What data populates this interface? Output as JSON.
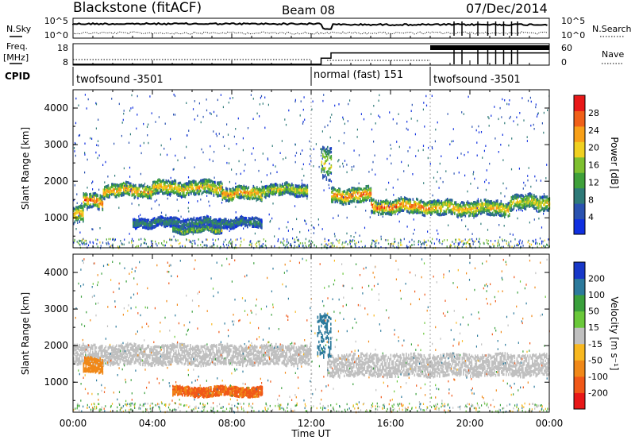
{
  "header": {
    "station": "Blackstone (fitACF)",
    "beam": "Beam 08",
    "date": "07/Dec/2014"
  },
  "side_labels": {
    "nsky": "N.Sky",
    "freq_top": "Freq.",
    "freq_bottom": "[MHz]",
    "cpid": "CPID",
    "nsearch": "N.Search",
    "nave": "Nave"
  },
  "noise_panel": {
    "ytick_top": "10^5",
    "ytick_bottom": "10^0",
    "right_ytick_top": "10^5",
    "right_ytick_bottom": "10^0"
  },
  "freq_panel": {
    "ytick_top": "18",
    "ytick_bottom": "8",
    "right_ytick_top": "60",
    "right_ytick_bottom": "0",
    "freq_steps": [
      {
        "start": 0,
        "end": 12.5,
        "mhz": 8.5
      },
      {
        "start": 12.5,
        "end": 13.0,
        "mhz": 12
      },
      {
        "start": 13.0,
        "end": 24,
        "mhz": 15
      }
    ]
  },
  "cpid_segments": [
    {
      "label": "twofsound -3501",
      "start_hour": 0
    },
    {
      "label": "normal (fast) 151",
      "start_hour": 12
    },
    {
      "label": "twofsound -3501",
      "start_hour": 18
    }
  ],
  "time_axis": {
    "label": "Time UT",
    "ticks": [
      "00:00",
      "04:00",
      "08:00",
      "12:00",
      "16:00",
      "20:00",
      "00:00"
    ]
  },
  "power_panel": {
    "ylabel": "Slant Range [km]",
    "yticks": [
      "1000",
      "2000",
      "3000",
      "4000"
    ],
    "colorbar_label": "Power [dB]",
    "colorbar_ticks": [
      "4",
      "8",
      "12",
      "16",
      "20",
      "24",
      "28"
    ],
    "colors": [
      "#1030e0",
      "#2a52b0",
      "#2e7a78",
      "#3fa03a",
      "#7ec030",
      "#f0d020",
      "#f8a018",
      "#f06018",
      "#e81818"
    ]
  },
  "velocity_panel": {
    "ylabel": "Slant Range [km]",
    "yticks": [
      "1000",
      "2000",
      "3000",
      "4000"
    ],
    "colorbar_label": "Velocity [m s⁻¹]",
    "colorbar_ticks": [
      "200",
      "100",
      "50",
      "15",
      "-15",
      "-50",
      "-100",
      "-200"
    ],
    "colors": [
      "#1838c8",
      "#2c7a9c",
      "#3aa03c",
      "#6ac83a",
      "#c0c0c0",
      "#f8b820",
      "#f08818",
      "#f05818",
      "#e81818"
    ]
  },
  "chart_data": [
    {
      "type": "heatmap",
      "title": "Power",
      "xlabel": "Time UT",
      "ylabel": "Slant Range [km]",
      "xlim": [
        0,
        24
      ],
      "ylim": [
        180,
        4500
      ],
      "zlabel": "Power [dB]",
      "zlim": [
        0,
        30
      ],
      "grid": false,
      "bands": [
        {
          "start_hour": 0.0,
          "end_hour": 0.5,
          "center_km": 1100,
          "width_km": 450,
          "power_db": 22
        },
        {
          "start_hour": 0.5,
          "end_hour": 1.5,
          "center_km": 1500,
          "width_km": 400,
          "power_db": 26
        },
        {
          "start_hour": 1.5,
          "end_hour": 4.0,
          "center_km": 1780,
          "width_km": 350,
          "power_db": 24
        },
        {
          "start_hour": 4.0,
          "end_hour": 7.5,
          "center_km": 1850,
          "width_km": 380,
          "power_db": 22
        },
        {
          "start_hour": 7.5,
          "end_hour": 9.5,
          "center_km": 1700,
          "width_km": 350,
          "power_db": 24
        },
        {
          "start_hour": 9.5,
          "end_hour": 11.8,
          "center_km": 1800,
          "width_km": 300,
          "power_db": 20
        },
        {
          "start_hour": 12.5,
          "end_hour": 13.0,
          "center_km": 2500,
          "width_km": 900,
          "power_db": 20
        },
        {
          "start_hour": 13.0,
          "end_hour": 15.0,
          "center_km": 1650,
          "width_km": 400,
          "power_db": 26
        },
        {
          "start_hour": 15.0,
          "end_hour": 18.0,
          "center_km": 1350,
          "width_km": 380,
          "power_db": 26
        },
        {
          "start_hour": 18.0,
          "end_hour": 22.0,
          "center_km": 1300,
          "width_km": 400,
          "power_db": 22
        },
        {
          "start_hour": 22.0,
          "end_hour": 24.0,
          "center_km": 1450,
          "width_km": 400,
          "power_db": 20
        },
        {
          "start_hour": 3.0,
          "end_hour": 9.5,
          "center_km": 900,
          "width_km": 250,
          "power_db": 10
        },
        {
          "start_hour": 5.0,
          "end_hour": 7.5,
          "center_km": 700,
          "width_km": 120,
          "power_db": 18
        }
      ]
    },
    {
      "type": "heatmap",
      "title": "Velocity",
      "xlabel": "Time UT",
      "ylabel": "Slant Range [km]",
      "xlim": [
        0,
        24
      ],
      "ylim": [
        180,
        4500
      ],
      "zlabel": "Velocity [m s⁻¹]",
      "zlim": [
        -200,
        200
      ],
      "grid": false,
      "bands": [
        {
          "start_hour": 0.0,
          "end_hour": 12.0,
          "center_km": 1780,
          "width_km": 550,
          "velocity": 0
        },
        {
          "start_hour": 12.8,
          "end_hour": 24.0,
          "center_km": 1500,
          "width_km": 600,
          "velocity": 0
        },
        {
          "start_hour": 0.5,
          "end_hour": 1.5,
          "center_km": 1500,
          "width_km": 400,
          "velocity": -60
        },
        {
          "start_hour": 5.0,
          "end_hour": 9.5,
          "center_km": 780,
          "width_km": 250,
          "velocity": -80
        },
        {
          "start_hour": 12.3,
          "end_hour": 13.0,
          "center_km": 2300,
          "width_km": 1200,
          "velocity": 90
        }
      ]
    }
  ]
}
